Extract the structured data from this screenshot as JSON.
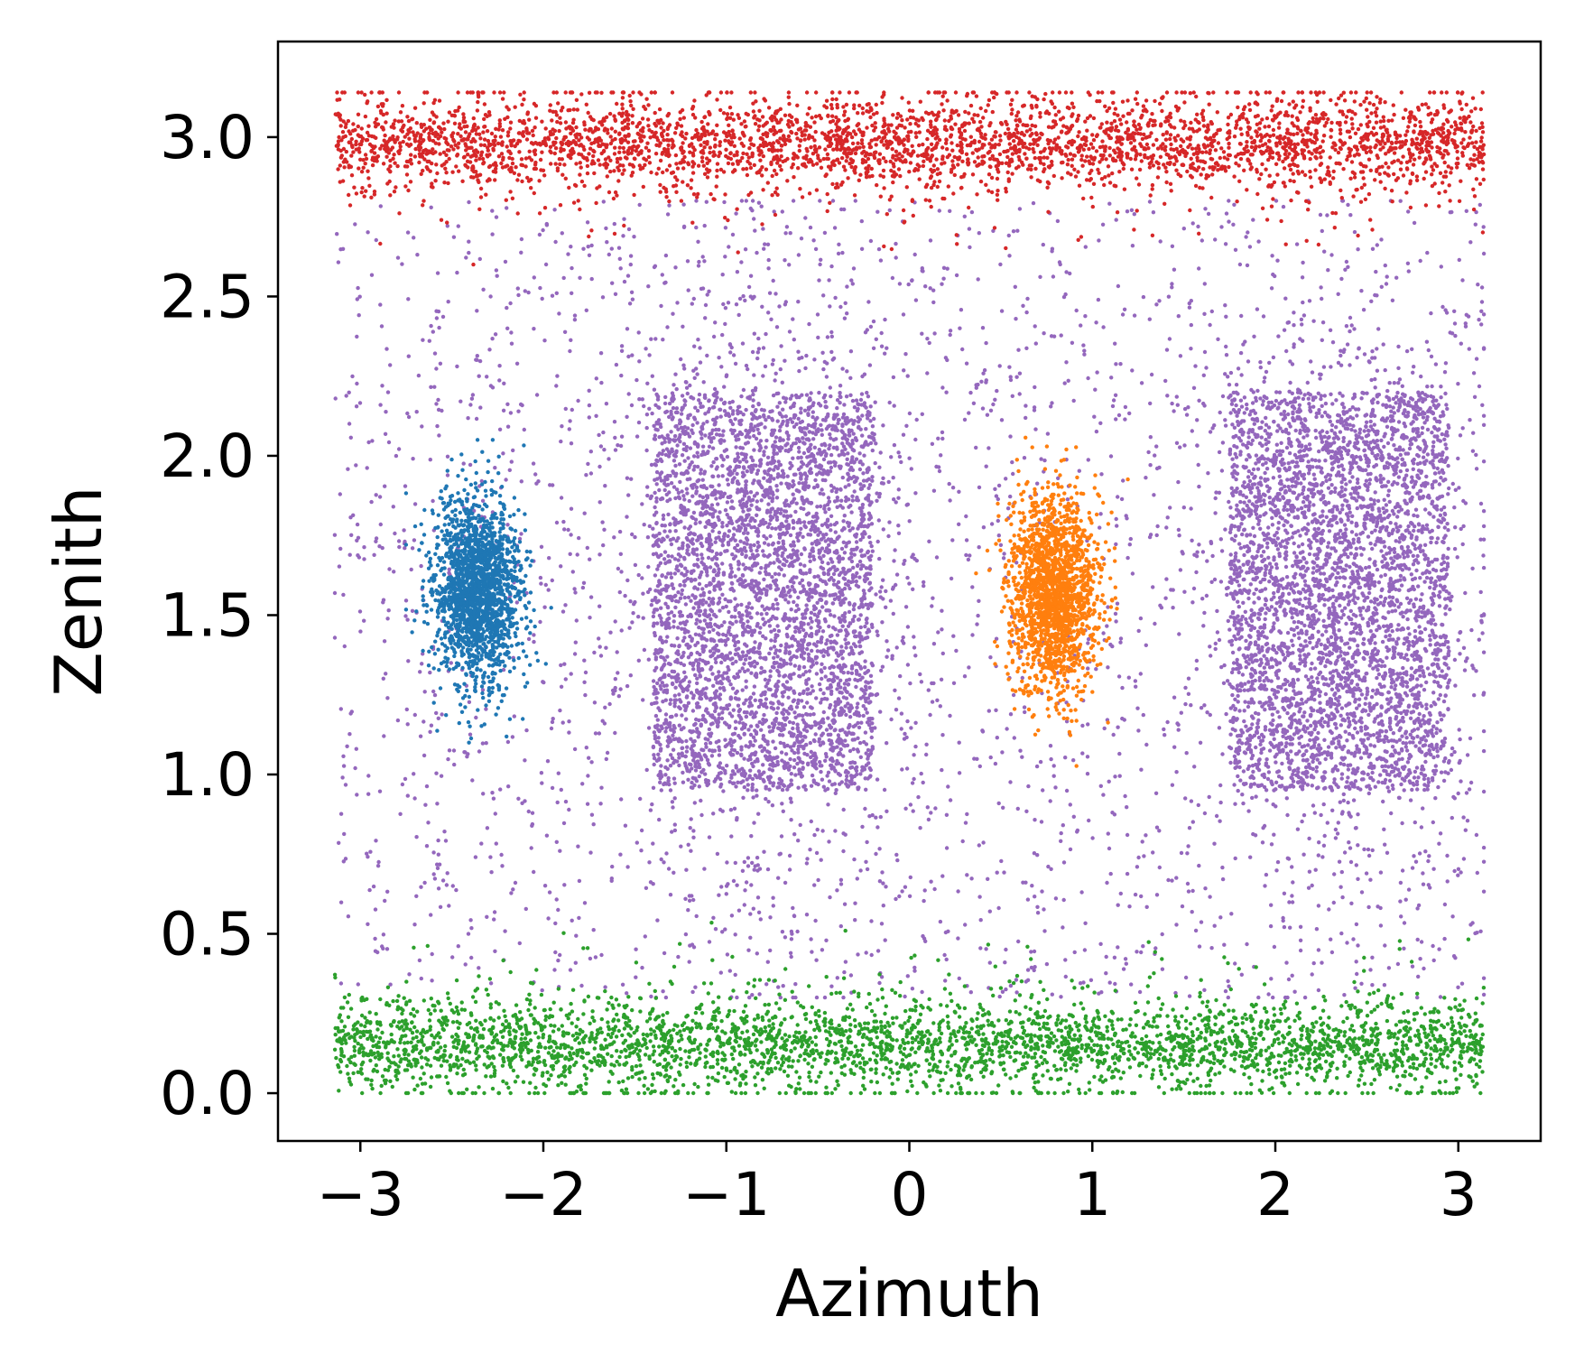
{
  "chart_data": {
    "type": "scatter",
    "title": "",
    "xlabel": "Azimuth",
    "ylabel": "Zenith",
    "xlim": [
      -3.45,
      3.45
    ],
    "ylim": [
      -0.15,
      3.3
    ],
    "x_ticks": [
      -3,
      -2,
      -1,
      0,
      1,
      2,
      3
    ],
    "x_tick_labels": [
      "−3",
      "−2",
      "−1",
      "0",
      "1",
      "2",
      "3"
    ],
    "y_ticks": [
      0.0,
      0.5,
      1.0,
      1.5,
      2.0,
      2.5,
      3.0
    ],
    "y_tick_labels": [
      "0.0",
      "0.5",
      "1.0",
      "1.5",
      "2.0",
      "2.5",
      "3.0"
    ],
    "grid": false,
    "legend": "none",
    "series": [
      {
        "color": "#9467bd",
        "distribution": "two square clusters plus uniform background",
        "clusters": [
          {
            "center": [
              -0.79,
              1.57
            ],
            "x_range": [
              -1.4,
              -0.2
            ],
            "y_range": [
              0.95,
              2.2
            ]
          },
          {
            "center": [
              2.36,
              1.57
            ],
            "x_range": [
              1.75,
              2.95
            ],
            "y_range": [
              0.95,
              2.2
            ]
          }
        ],
        "background_x_range": [
          -3.14,
          3.14
        ],
        "background_y_range": [
          0.3,
          2.8
        ]
      },
      {
        "color": "#d62728",
        "distribution": "band",
        "x_range": [
          -3.14,
          3.14
        ],
        "y_center": 2.98,
        "y_range": [
          2.6,
          3.14
        ]
      },
      {
        "color": "#2ca02c",
        "distribution": "band",
        "x_range": [
          -3.14,
          3.14
        ],
        "y_center": 0.15,
        "y_range": [
          0.0,
          0.55
        ]
      },
      {
        "color": "#1f77b4",
        "distribution": "gaussian blob",
        "center": [
          -2.36,
          1.57
        ],
        "spread": [
          0.12,
          0.15
        ],
        "x_range": [
          -2.75,
          -1.85
        ],
        "y_range": [
          1.1,
          2.05
        ]
      },
      {
        "color": "#ff7f0e",
        "distribution": "gaussian blob",
        "center": [
          0.79,
          1.57
        ],
        "spread": [
          0.12,
          0.15
        ],
        "x_range": [
          0.35,
          1.3
        ],
        "y_range": [
          0.98,
          2.08
        ]
      }
    ]
  }
}
